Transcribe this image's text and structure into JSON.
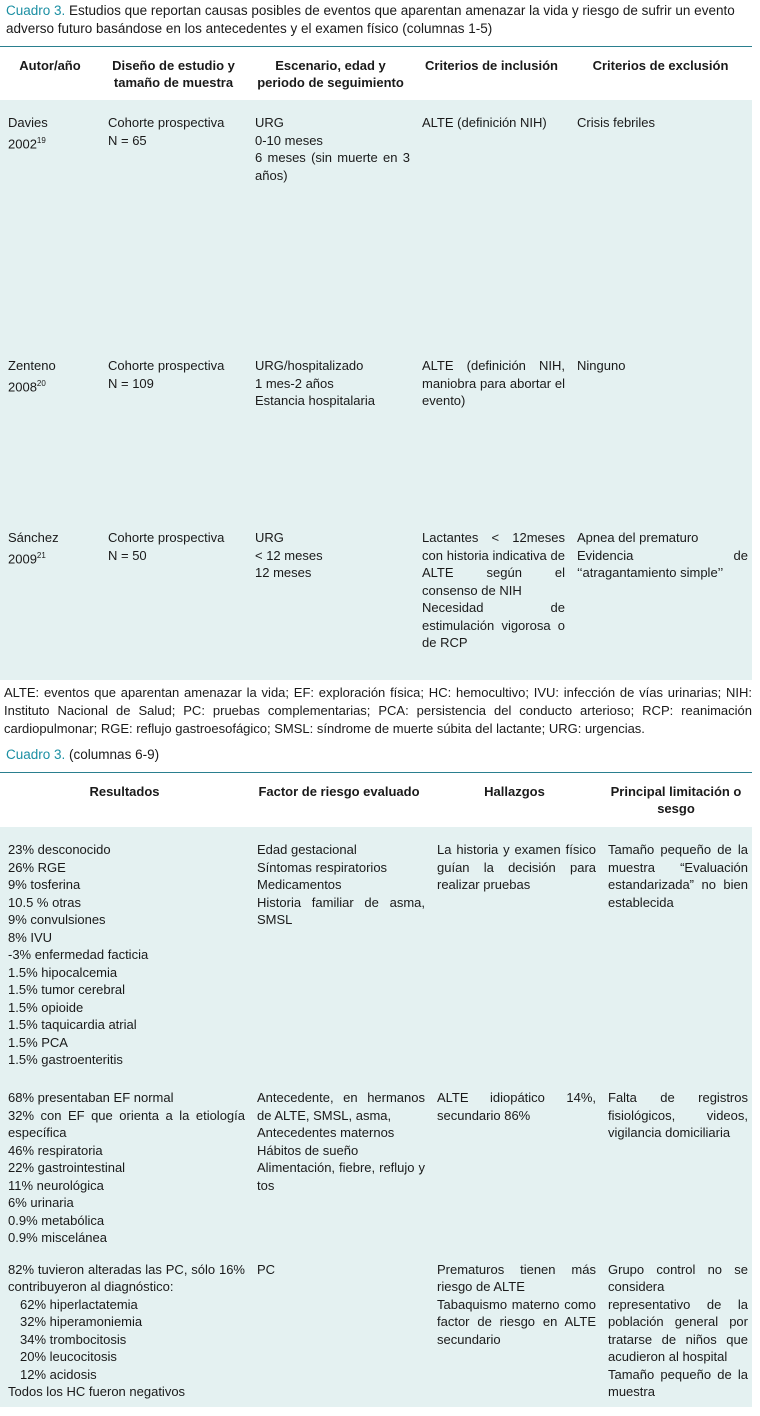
{
  "caption1": {
    "label": "Cuadro 3.",
    "text": " Estudios que reportan causas posibles de eventos que aparentan amenazar la vida y riesgo de sufrir un evento adverso futuro basándose en los antecedentes y el examen físico (columnas 1-5)"
  },
  "table1": {
    "headers": [
      "Autor/año",
      "Diseño de estudio y tamaño de muestra",
      "Escenario, edad y periodo de seguimiento",
      "Criterios de inclusión",
      "Criterios de exclusión"
    ],
    "rows": [
      {
        "author": "Davies",
        "year": "2002",
        "ref": "19",
        "design": [
          "Cohorte prospectiva",
          "N = 65"
        ],
        "setting": [
          "URG",
          "0-10 meses",
          "6 meses (sin muerte en 3 años)"
        ],
        "inclusion": [
          "ALTE (definición NIH)"
        ],
        "exclusion": [
          "Crisis febriles"
        ]
      },
      {
        "author": "Zenteno",
        "year": "2008",
        "ref": "20",
        "design": [
          "Cohorte prospectiva",
          "N = 109"
        ],
        "setting": [
          "URG/hospitalizado",
          "1 mes-2 años",
          "Estancia hospitalaria"
        ],
        "inclusion": [
          "ALTE (definición NIH, maniobra para abortar el evento)"
        ],
        "exclusion": [
          "Ninguno"
        ]
      },
      {
        "author": "Sánchez",
        "year": "2009",
        "ref": "21",
        "design": [
          "Cohorte prospectiva",
          "N = 50"
        ],
        "setting": [
          "URG",
          "< 12 meses",
          "12 meses"
        ],
        "inclusion": [
          "Lactantes < 12meses con historia indicativa de ALTE según el consenso de NIH",
          "Necesidad de estimulación vigorosa o de RCP"
        ],
        "exclusion": [
          "Apnea del prematuro",
          "Evidencia de ‘‘atragantamiento simple’’"
        ]
      }
    ]
  },
  "footnote": "ALTE: eventos que aparentan amenazar la vida; EF: exploración física; HC: hemocultivo; IVU: infección de vías urinarias; NIH: Instituto Nacional de Salud; PC: pruebas complementarias; PCA: persistencia del conducto arterioso; RCP: reanimación cardiopulmonar; RGE: reflujo gastroesofágico; SMSL: síndrome de muerte súbita del lactante; URG: urgencias.",
  "caption2": {
    "label": "Cuadro 3.",
    "text": " (columnas 6-9)"
  },
  "table2": {
    "headers": [
      "Resultados",
      "Factor de riesgo evaluado",
      "Hallazgos",
      "Principal limitación o sesgo"
    ],
    "rows": [
      {
        "results": [
          "23% desconocido",
          "26% RGE",
          "9% tosferina",
          "10.5 % otras",
          "9% convulsiones",
          "8% IVU",
          "-3% enfermedad facticia",
          "1.5% hipocalcemia",
          "1.5% tumor cerebral",
          "1.5% opioide",
          "1.5% taquicardia atrial",
          "1.5% PCA",
          "1.5% gastroenteritis"
        ],
        "risk": [
          "Edad gestacional",
          "Síntomas respiratorios",
          "Medicamentos",
          "Historia familiar de asma, SMSL"
        ],
        "findings": [
          "La historia y examen físico guían la decisión para realizar pruebas"
        ],
        "limitation": [
          "Tamaño pequeño de la muestra “Evaluación estandarizada” no bien establecida"
        ]
      },
      {
        "results": [
          "68% presentaban EF normal",
          "32% con EF que orienta a la etiología específica",
          "46% respiratoria",
          "22% gastrointestinal",
          "11% neurológica",
          "6% urinaria",
          "0.9% metabólica",
          "0.9% miscelánea"
        ],
        "risk": [
          "Antecedente, en hermanos de ALTE, SMSL, asma,",
          "Antecedentes maternos",
          "Hábitos de sueño",
          "Alimentación, fiebre, reflujo y tos"
        ],
        "findings": [
          "ALTE idiopático 14%, secundario 86%"
        ],
        "limitation": [
          "Falta de registros fisiológicos, videos, vigilancia domiciliaria"
        ]
      },
      {
        "results": [
          "82% tuvieron alteradas las PC, sólo 16% contribuyeron al diagnóstico:"
        ],
        "results_indented": [
          "62% hiperlactatemia",
          "32% hiperamoniemia",
          "34% trombocitosis",
          "20% leucocitosis",
          "12% acidosis"
        ],
        "results_end": "Todos los HC fueron negativos",
        "risk": [
          "PC"
        ],
        "findings": [
          "Prematuros tienen más riesgo de ALTE",
          "Tabaquismo materno como factor de riesgo en ALTE secundario"
        ],
        "limitation": [
          "Grupo control no se considera representativo de la población general por tratarse de niños que acudieron al hospital",
          "Tamaño pequeño de la muestra"
        ]
      }
    ]
  },
  "colors": {
    "accent": "#1b8fa3",
    "row_bg": "#e4f1f1"
  }
}
